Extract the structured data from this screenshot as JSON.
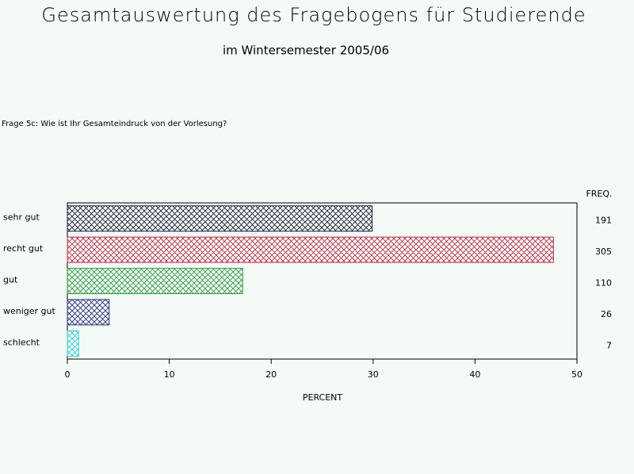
{
  "chart_data": {
    "type": "bar",
    "orientation": "horizontal",
    "title": "Gesamtauswertung des Fragebogens für Studierende",
    "subtitle": "im Wintersemester 2005/06",
    "question": "Frage 5c: Wie ist Ihr Gesamteindruck von der Vorlesung?",
    "categories": [
      "sehr gut",
      "recht gut",
      "gut",
      "weniger gut",
      "schlecht"
    ],
    "values": [
      29.9,
      47.7,
      17.2,
      4.1,
      1.1
    ],
    "colors": [
      "#1a1a3a",
      "#c0304a",
      "#2e9a3e",
      "#2a2a80",
      "#30c8d8"
    ],
    "xlabel": "PERCENT",
    "xlim": [
      0,
      50
    ],
    "xticks": [
      0,
      10,
      20,
      30,
      40,
      50
    ],
    "freq": {
      "label": "FREQ.",
      "values": [
        191,
        305,
        110,
        26,
        7
      ]
    }
  }
}
